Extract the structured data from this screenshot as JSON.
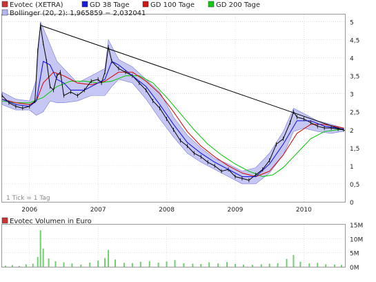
{
  "colors": {
    "price": "#000000",
    "gd38": "#1a1adc",
    "gd100": "#d21414",
    "gd200": "#14c814",
    "bollinger_fill": "#b4b4f0",
    "bollinger_stroke": "#7a7ad8",
    "volume": "#6fd06f",
    "trendline": "#000000",
    "grid": "#cfcfcf"
  },
  "legend": {
    "price_label": "Evotec (XETRA)",
    "gd38_label": "GD 38 Tage",
    "gd100_label": "GD 100 Tage",
    "gd200_label": "GD 200 Tage",
    "bollinger_label": "Bollinger (20, 2): 1,965859 − 2,032041"
  },
  "tick_note": "1 Tick = 1 Tag",
  "volume_title": "Evotec Volumen in Euro",
  "chart_data": [
    {
      "type": "line",
      "title": "",
      "x_tick_labels": [
        "2006",
        "2007",
        "2008",
        "2009",
        "2010"
      ],
      "y_tick_labels": [
        "0",
        "0,5",
        "1",
        "1,5",
        "2",
        "2,5",
        "3",
        "3,5",
        "4",
        "4,5",
        "5"
      ],
      "ylim": [
        0,
        5.2
      ],
      "x_range": [
        2005.6,
        2010.6
      ],
      "grid": true,
      "legend_position": "top-left",
      "series": [
        {
          "name": "Evotec (XETRA)",
          "points": [
            [
              2005.6,
              2.95
            ],
            [
              2005.7,
              2.75
            ],
            [
              2005.8,
              2.65
            ],
            [
              2005.9,
              2.6
            ],
            [
              2006.0,
              2.65
            ],
            [
              2006.08,
              2.8
            ],
            [
              2006.12,
              4.2
            ],
            [
              2006.16,
              4.9
            ],
            [
              2006.2,
              4.4
            ],
            [
              2006.25,
              3.9
            ],
            [
              2006.3,
              3.2
            ],
            [
              2006.35,
              3.1
            ],
            [
              2006.4,
              3.5
            ],
            [
              2006.45,
              3.6
            ],
            [
              2006.5,
              2.95
            ],
            [
              2006.6,
              3.05
            ],
            [
              2006.7,
              2.95
            ],
            [
              2006.8,
              3.1
            ],
            [
              2006.9,
              3.35
            ],
            [
              2007.0,
              3.4
            ],
            [
              2007.05,
              3.3
            ],
            [
              2007.1,
              3.6
            ],
            [
              2007.15,
              4.3
            ],
            [
              2007.2,
              3.9
            ],
            [
              2007.3,
              3.7
            ],
            [
              2007.4,
              3.6
            ],
            [
              2007.5,
              3.5
            ],
            [
              2007.6,
              3.3
            ],
            [
              2007.7,
              3.1
            ],
            [
              2007.8,
              2.8
            ],
            [
              2007.9,
              2.6
            ],
            [
              2008.0,
              2.3
            ],
            [
              2008.1,
              2.0
            ],
            [
              2008.2,
              1.7
            ],
            [
              2008.3,
              1.55
            ],
            [
              2008.4,
              1.35
            ],
            [
              2008.5,
              1.25
            ],
            [
              2008.6,
              1.1
            ],
            [
              2008.7,
              1.0
            ],
            [
              2008.8,
              0.85
            ],
            [
              2008.9,
              0.9
            ],
            [
              2009.0,
              0.7
            ],
            [
              2009.1,
              0.65
            ],
            [
              2009.2,
              0.6
            ],
            [
              2009.3,
              0.75
            ],
            [
              2009.4,
              0.9
            ],
            [
              2009.5,
              1.15
            ],
            [
              2009.6,
              1.6
            ],
            [
              2009.7,
              1.75
            ],
            [
              2009.8,
              2.2
            ],
            [
              2009.85,
              2.5
            ],
            [
              2009.9,
              2.35
            ],
            [
              2010.0,
              2.3
            ],
            [
              2010.1,
              2.2
            ],
            [
              2010.2,
              2.1
            ],
            [
              2010.3,
              2.05
            ],
            [
              2010.4,
              2.05
            ],
            [
              2010.5,
              2.02
            ],
            [
              2010.58,
              2.0
            ]
          ]
        },
        {
          "name": "GD 38 Tage",
          "points": [
            [
              2005.6,
              2.85
            ],
            [
              2005.8,
              2.7
            ],
            [
              2006.0,
              2.65
            ],
            [
              2006.1,
              2.8
            ],
            [
              2006.2,
              3.9
            ],
            [
              2006.3,
              3.8
            ],
            [
              2006.4,
              3.4
            ],
            [
              2006.5,
              3.3
            ],
            [
              2006.6,
              3.1
            ],
            [
              2006.8,
              3.1
            ],
            [
              2007.0,
              3.3
            ],
            [
              2007.1,
              3.4
            ],
            [
              2007.2,
              3.9
            ],
            [
              2007.3,
              3.8
            ],
            [
              2007.5,
              3.5
            ],
            [
              2007.7,
              3.2
            ],
            [
              2007.9,
              2.7
            ],
            [
              2008.1,
              2.15
            ],
            [
              2008.3,
              1.65
            ],
            [
              2008.5,
              1.35
            ],
            [
              2008.7,
              1.1
            ],
            [
              2008.9,
              0.9
            ],
            [
              2009.1,
              0.7
            ],
            [
              2009.3,
              0.7
            ],
            [
              2009.5,
              1.05
            ],
            [
              2009.7,
              1.6
            ],
            [
              2009.9,
              2.25
            ],
            [
              2010.1,
              2.25
            ],
            [
              2010.3,
              2.1
            ],
            [
              2010.58,
              2.02
            ]
          ]
        },
        {
          "name": "GD 100 Tage",
          "points": [
            [
              2005.6,
              2.85
            ],
            [
              2005.8,
              2.75
            ],
            [
              2006.0,
              2.7
            ],
            [
              2006.1,
              2.8
            ],
            [
              2006.2,
              3.3
            ],
            [
              2006.35,
              3.6
            ],
            [
              2006.5,
              3.5
            ],
            [
              2006.7,
              3.3
            ],
            [
              2006.9,
              3.25
            ],
            [
              2007.1,
              3.35
            ],
            [
              2007.3,
              3.6
            ],
            [
              2007.5,
              3.6
            ],
            [
              2007.7,
              3.35
            ],
            [
              2007.9,
              3.0
            ],
            [
              2008.1,
              2.5
            ],
            [
              2008.3,
              1.95
            ],
            [
              2008.5,
              1.55
            ],
            [
              2008.7,
              1.25
            ],
            [
              2008.9,
              1.0
            ],
            [
              2009.1,
              0.8
            ],
            [
              2009.3,
              0.7
            ],
            [
              2009.5,
              0.85
            ],
            [
              2009.7,
              1.3
            ],
            [
              2009.9,
              1.9
            ],
            [
              2010.1,
              2.15
            ],
            [
              2010.3,
              2.15
            ],
            [
              2010.58,
              2.05
            ]
          ]
        },
        {
          "name": "GD 200 Tage",
          "points": [
            [
              2005.6,
              2.8
            ],
            [
              2005.8,
              2.75
            ],
            [
              2006.0,
              2.75
            ],
            [
              2006.2,
              2.9
            ],
            [
              2006.4,
              3.2
            ],
            [
              2006.6,
              3.35
            ],
            [
              2006.8,
              3.35
            ],
            [
              2007.0,
              3.3
            ],
            [
              2007.2,
              3.35
            ],
            [
              2007.4,
              3.5
            ],
            [
              2007.6,
              3.5
            ],
            [
              2007.8,
              3.3
            ],
            [
              2008.0,
              2.9
            ],
            [
              2008.2,
              2.45
            ],
            [
              2008.4,
              2.0
            ],
            [
              2008.6,
              1.6
            ],
            [
              2008.8,
              1.3
            ],
            [
              2009.0,
              1.05
            ],
            [
              2009.2,
              0.85
            ],
            [
              2009.4,
              0.7
            ],
            [
              2009.55,
              0.75
            ],
            [
              2009.7,
              0.95
            ],
            [
              2009.9,
              1.35
            ],
            [
              2010.1,
              1.75
            ],
            [
              2010.3,
              1.95
            ],
            [
              2010.58,
              2.02
            ]
          ]
        },
        {
          "name": "Trendline",
          "points": [
            [
              2006.16,
              4.9
            ],
            [
              2010.6,
              1.98
            ]
          ]
        }
      ],
      "bollinger": {
        "name": "Bollinger (20, 2)",
        "upper": [
          [
            2005.6,
            3.05
          ],
          [
            2005.8,
            2.85
          ],
          [
            2006.0,
            2.8
          ],
          [
            2006.1,
            3.4
          ],
          [
            2006.16,
            5.0
          ],
          [
            2006.25,
            4.6
          ],
          [
            2006.4,
            3.9
          ],
          [
            2006.5,
            3.7
          ],
          [
            2006.7,
            3.3
          ],
          [
            2006.9,
            3.5
          ],
          [
            2007.1,
            3.7
          ],
          [
            2007.15,
            4.5
          ],
          [
            2007.3,
            3.95
          ],
          [
            2007.5,
            3.75
          ],
          [
            2007.7,
            3.4
          ],
          [
            2007.9,
            3.05
          ],
          [
            2008.1,
            2.35
          ],
          [
            2008.3,
            1.85
          ],
          [
            2008.5,
            1.5
          ],
          [
            2008.7,
            1.2
          ],
          [
            2008.9,
            1.05
          ],
          [
            2009.1,
            0.85
          ],
          [
            2009.3,
            0.95
          ],
          [
            2009.5,
            1.35
          ],
          [
            2009.7,
            1.95
          ],
          [
            2009.85,
            2.6
          ],
          [
            2010.0,
            2.45
          ],
          [
            2010.2,
            2.25
          ],
          [
            2010.4,
            2.15
          ],
          [
            2010.58,
            2.05
          ]
        ],
        "lower": [
          [
            2005.6,
            2.7
          ],
          [
            2005.8,
            2.55
          ],
          [
            2006.0,
            2.55
          ],
          [
            2006.1,
            2.4
          ],
          [
            2006.2,
            2.5
          ],
          [
            2006.3,
            2.8
          ],
          [
            2006.4,
            2.75
          ],
          [
            2006.5,
            2.75
          ],
          [
            2006.7,
            2.8
          ],
          [
            2006.9,
            2.95
          ],
          [
            2007.1,
            2.95
          ],
          [
            2007.2,
            3.2
          ],
          [
            2007.3,
            3.4
          ],
          [
            2007.5,
            3.3
          ],
          [
            2007.7,
            2.85
          ],
          [
            2007.9,
            2.3
          ],
          [
            2008.1,
            1.8
          ],
          [
            2008.3,
            1.35
          ],
          [
            2008.5,
            1.1
          ],
          [
            2008.7,
            0.9
          ],
          [
            2008.9,
            0.7
          ],
          [
            2009.1,
            0.5
          ],
          [
            2009.3,
            0.5
          ],
          [
            2009.5,
            0.8
          ],
          [
            2009.7,
            1.3
          ],
          [
            2009.85,
            1.95
          ],
          [
            2010.0,
            2.05
          ],
          [
            2010.2,
            1.95
          ],
          [
            2010.4,
            1.9
          ],
          [
            2010.58,
            1.96
          ]
        ]
      }
    },
    {
      "type": "bar",
      "title": "Evotec Volumen in Euro",
      "y_tick_labels": [
        "0M",
        "5M",
        "10M",
        "15M"
      ],
      "ylim": [
        0,
        15
      ],
      "x_range": [
        2005.6,
        2010.6
      ],
      "series": [
        {
          "name": "Evotec Volumen in Euro",
          "points": [
            [
              2005.65,
              0.4
            ],
            [
              2005.75,
              0.6
            ],
            [
              2005.85,
              0.3
            ],
            [
              2005.95,
              0.9
            ],
            [
              2006.05,
              1.1
            ],
            [
              2006.12,
              3.5
            ],
            [
              2006.16,
              13.0
            ],
            [
              2006.2,
              6.5
            ],
            [
              2006.28,
              3.0
            ],
            [
              2006.38,
              2.0
            ],
            [
              2006.5,
              1.6
            ],
            [
              2006.62,
              1.2
            ],
            [
              2006.75,
              0.8
            ],
            [
              2006.88,
              1.5
            ],
            [
              2007.0,
              2.2
            ],
            [
              2007.1,
              3.1
            ],
            [
              2007.15,
              6.0
            ],
            [
              2007.25,
              2.6
            ],
            [
              2007.38,
              1.4
            ],
            [
              2007.5,
              1.3
            ],
            [
              2007.62,
              1.8
            ],
            [
              2007.75,
              2.0
            ],
            [
              2007.88,
              1.5
            ],
            [
              2008.0,
              1.9
            ],
            [
              2008.12,
              2.4
            ],
            [
              2008.25,
              1.3
            ],
            [
              2008.38,
              1.1
            ],
            [
              2008.5,
              1.0
            ],
            [
              2008.62,
              1.6
            ],
            [
              2008.75,
              1.2
            ],
            [
              2008.88,
              1.7
            ],
            [
              2009.0,
              1.0
            ],
            [
              2009.12,
              0.8
            ],
            [
              2009.25,
              0.7
            ],
            [
              2009.38,
              0.9
            ],
            [
              2009.5,
              1.1
            ],
            [
              2009.62,
              1.3
            ],
            [
              2009.75,
              2.8
            ],
            [
              2009.85,
              4.2
            ],
            [
              2009.95,
              1.8
            ],
            [
              2010.08,
              1.2
            ],
            [
              2010.2,
              1.4
            ],
            [
              2010.32,
              0.9
            ],
            [
              2010.45,
              0.8
            ],
            [
              2010.55,
              0.7
            ]
          ]
        }
      ]
    }
  ]
}
